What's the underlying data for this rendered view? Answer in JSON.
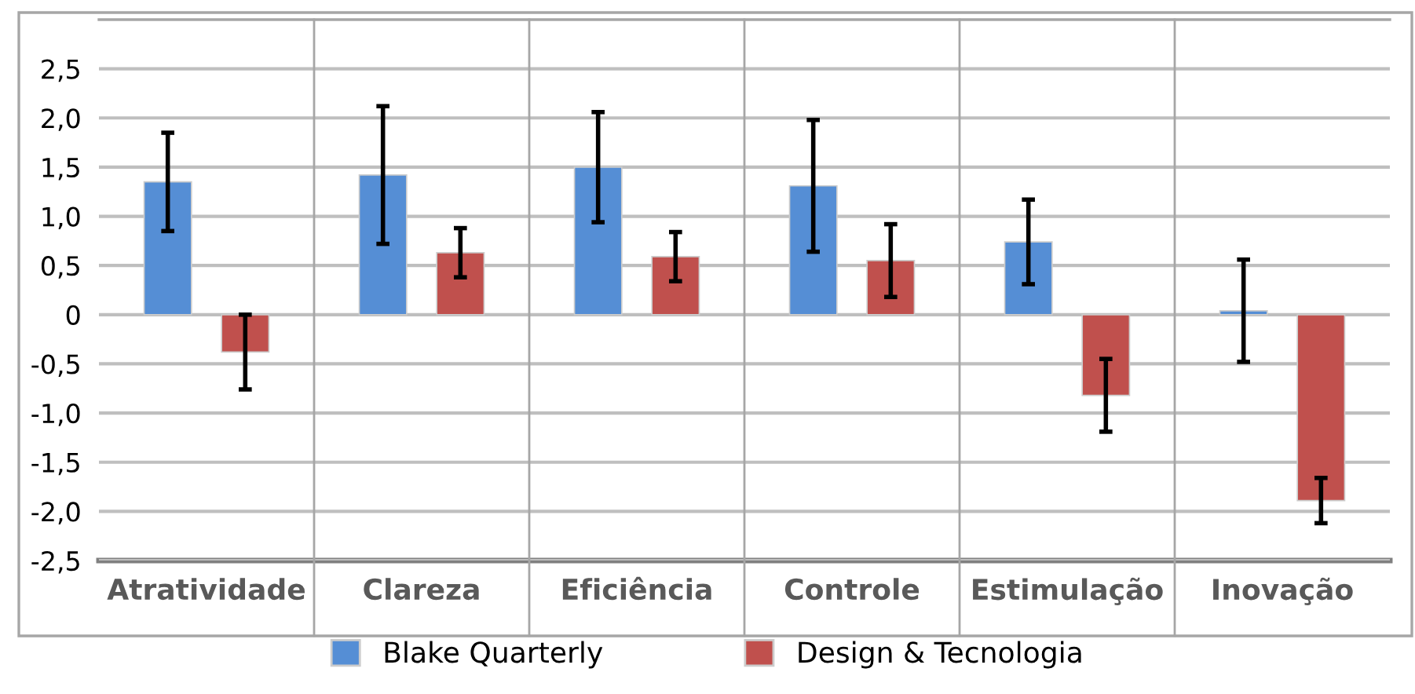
{
  "chart_data": {
    "type": "bar",
    "categories": [
      "Atratividade",
      "Clareza",
      "Eficiência",
      "Controle",
      "Estimulação",
      "Inovação"
    ],
    "series": [
      {
        "name": "Blake Quarterly",
        "color": "#558ed5",
        "values": [
          1.35,
          1.42,
          1.5,
          1.31,
          0.74,
          0.04
        ],
        "errors": [
          0.5,
          0.7,
          0.56,
          0.67,
          0.43,
          0.52
        ]
      },
      {
        "name": "Design & Tecnologia",
        "color": "#c0504d",
        "values": [
          -0.38,
          0.63,
          0.59,
          0.55,
          -0.82,
          -1.89
        ],
        "errors": [
          0.38,
          0.25,
          0.25,
          0.37,
          0.37,
          0.23
        ]
      }
    ],
    "ylim": [
      -2.5,
      3.0
    ],
    "yticks": [
      {
        "value": -2.5,
        "label": "-2,5"
      },
      {
        "value": -2.0,
        "label": "-2,0"
      },
      {
        "value": -1.5,
        "label": "-1,5"
      },
      {
        "value": -1.0,
        "label": "-1,0"
      },
      {
        "value": -0.5,
        "label": "-0,5"
      },
      0,
      {
        "value": 0.5,
        "label": "0,5"
      },
      {
        "value": 1.0,
        "label": "1,0"
      },
      {
        "value": 1.5,
        "label": "1,5"
      },
      {
        "value": 2.0,
        "label": "2,0"
      },
      {
        "value": 2.5,
        "label": "2,5"
      }
    ],
    "grid": true,
    "legend": "bottom"
  }
}
